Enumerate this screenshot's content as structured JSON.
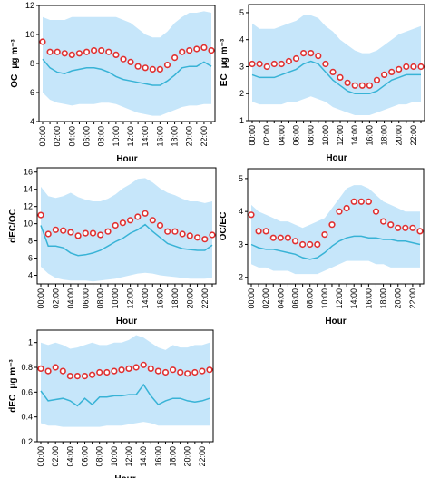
{
  "chart_data": [
    {
      "type": "line",
      "ylabel": "OC",
      "yunit": "μg m⁻³",
      "xlabel": "Hour",
      "ylim": [
        4,
        12
      ],
      "yticks": [
        4,
        6,
        8,
        10,
        12
      ],
      "x": [
        0,
        1,
        2,
        3,
        4,
        5,
        6,
        7,
        8,
        9,
        10,
        11,
        12,
        13,
        14,
        15,
        16,
        17,
        18,
        19,
        20,
        21,
        22,
        23
      ],
      "xticklabels": [
        "00:00",
        "02:00",
        "04:00",
        "06:00",
        "08:00",
        "10:00",
        "12:00",
        "14:00",
        "16:00",
        "18:00",
        "20:00",
        "22:00"
      ],
      "series": [
        {
          "role": "band_upper",
          "values": [
            11.2,
            11.0,
            11.0,
            11.0,
            11.2,
            11.2,
            11.2,
            11.2,
            11.2,
            11.2,
            11.2,
            11.0,
            10.8,
            10.4,
            10.0,
            9.8,
            9.8,
            10.2,
            10.8,
            11.2,
            11.5,
            11.5,
            11.6,
            11.5
          ]
        },
        {
          "role": "band_lower",
          "values": [
            6.0,
            5.5,
            5.3,
            5.2,
            5.1,
            5.2,
            5.2,
            5.2,
            5.3,
            5.3,
            5.2,
            5.0,
            4.8,
            4.6,
            4.5,
            4.4,
            4.4,
            4.6,
            4.8,
            5.0,
            5.1,
            5.1,
            5.2,
            5.2
          ]
        },
        {
          "role": "line",
          "values": [
            8.3,
            7.7,
            7.4,
            7.3,
            7.5,
            7.6,
            7.7,
            7.7,
            7.6,
            7.4,
            7.1,
            6.9,
            6.8,
            6.7,
            6.6,
            6.5,
            6.5,
            6.8,
            7.2,
            7.7,
            7.8,
            7.8,
            8.1,
            7.8
          ]
        },
        {
          "role": "markers",
          "values": [
            9.5,
            8.8,
            8.8,
            8.7,
            8.6,
            8.7,
            8.8,
            8.9,
            8.9,
            8.8,
            8.6,
            8.3,
            8.1,
            7.8,
            7.7,
            7.6,
            7.6,
            7.9,
            8.4,
            8.8,
            8.9,
            9.0,
            9.1,
            8.9
          ]
        }
      ]
    },
    {
      "type": "line",
      "ylabel": "EC",
      "yunit": "μg m⁻³",
      "xlabel": "Hour",
      "ylim": [
        1,
        5.3
      ],
      "yticks": [
        1,
        2,
        3,
        4,
        5
      ],
      "x": [
        0,
        1,
        2,
        3,
        4,
        5,
        6,
        7,
        8,
        9,
        10,
        11,
        12,
        13,
        14,
        15,
        16,
        17,
        18,
        19,
        20,
        21,
        22,
        23
      ],
      "xticklabels": [
        "00:00",
        "02:00",
        "04:00",
        "06:00",
        "08:00",
        "10:00",
        "12:00",
        "14:00",
        "16:00",
        "18:00",
        "20:00",
        "22:00"
      ],
      "series": [
        {
          "role": "band_upper",
          "values": [
            4.6,
            4.4,
            4.4,
            4.4,
            4.5,
            4.6,
            4.7,
            4.9,
            4.9,
            4.8,
            4.5,
            4.3,
            4.0,
            3.8,
            3.6,
            3.5,
            3.5,
            3.6,
            3.8,
            4.0,
            4.2,
            4.3,
            4.4,
            4.5
          ]
        },
        {
          "role": "band_lower",
          "values": [
            1.7,
            1.6,
            1.6,
            1.6,
            1.6,
            1.7,
            1.7,
            1.8,
            1.9,
            1.8,
            1.7,
            1.5,
            1.4,
            1.3,
            1.2,
            1.2,
            1.2,
            1.3,
            1.4,
            1.5,
            1.6,
            1.6,
            1.7,
            1.7
          ]
        },
        {
          "role": "line",
          "values": [
            2.7,
            2.6,
            2.6,
            2.6,
            2.7,
            2.8,
            2.9,
            3.1,
            3.2,
            3.1,
            2.8,
            2.5,
            2.3,
            2.1,
            2.0,
            2.0,
            2.0,
            2.1,
            2.3,
            2.5,
            2.6,
            2.7,
            2.7,
            2.7
          ]
        },
        {
          "role": "markers",
          "values": [
            3.1,
            3.1,
            3.0,
            3.1,
            3.1,
            3.2,
            3.3,
            3.5,
            3.5,
            3.4,
            3.1,
            2.8,
            2.6,
            2.4,
            2.3,
            2.3,
            2.3,
            2.5,
            2.7,
            2.8,
            2.9,
            3.0,
            3.0,
            3.0
          ]
        }
      ]
    },
    {
      "type": "line",
      "ylabel": "dEC/OC",
      "xlabel": "Hour",
      "ylim": [
        3,
        16.5
      ],
      "yticks": [
        4,
        6,
        8,
        10,
        12,
        14,
        16
      ],
      "x": [
        0,
        1,
        2,
        3,
        4,
        5,
        6,
        7,
        8,
        9,
        10,
        11,
        12,
        13,
        14,
        15,
        16,
        17,
        18,
        19,
        20,
        21,
        22,
        23
      ],
      "xticklabels": [
        "00:00",
        "02:00",
        "04:00",
        "06:00",
        "08:00",
        "10:00",
        "12:00",
        "14:00",
        "16:00",
        "18:00",
        "20:00",
        "22:00"
      ],
      "series": [
        {
          "role": "band_upper",
          "values": [
            14.3,
            13.2,
            13.0,
            13.2,
            13.6,
            13.1,
            12.8,
            12.6,
            12.6,
            12.9,
            13.4,
            14.1,
            14.6,
            15.2,
            15.3,
            14.8,
            14.1,
            13.6,
            13.3,
            12.9,
            12.6,
            12.6,
            12.4,
            12.6
          ]
        },
        {
          "role": "band_lower",
          "values": [
            5.0,
            4.2,
            3.7,
            3.5,
            3.4,
            3.4,
            3.4,
            3.3,
            3.4,
            3.5,
            3.6,
            3.8,
            4.0,
            4.2,
            4.3,
            4.2,
            4.0,
            3.9,
            3.8,
            3.7,
            3.6,
            3.6,
            3.6,
            3.7
          ]
        },
        {
          "role": "line",
          "values": [
            9.8,
            7.4,
            7.4,
            7.2,
            6.6,
            6.3,
            6.4,
            6.6,
            6.9,
            7.4,
            7.9,
            8.3,
            8.9,
            9.3,
            9.9,
            9.1,
            8.4,
            7.7,
            7.4,
            7.1,
            7.0,
            6.9,
            6.9,
            7.5
          ]
        },
        {
          "role": "markers",
          "values": [
            11.0,
            8.8,
            9.3,
            9.2,
            9.0,
            8.6,
            8.9,
            8.9,
            8.7,
            9.1,
            9.8,
            10.1,
            10.4,
            10.8,
            11.2,
            10.4,
            9.8,
            9.1,
            9.1,
            8.8,
            8.6,
            8.4,
            8.2,
            8.7
          ]
        }
      ]
    },
    {
      "type": "line",
      "ylabel": "OC/EC",
      "xlabel": "Hour",
      "ylim": [
        1.8,
        5.3
      ],
      "yticks": [
        2,
        3,
        4,
        5
      ],
      "x": [
        0,
        1,
        2,
        3,
        4,
        5,
        6,
        7,
        8,
        9,
        10,
        11,
        12,
        13,
        14,
        15,
        16,
        17,
        18,
        19,
        20,
        21,
        22,
        23
      ],
      "xticklabels": [
        "00:00",
        "02:00",
        "04:00",
        "06:00",
        "08:00",
        "10:00",
        "12:00",
        "14:00",
        "16:00",
        "18:00",
        "20:00",
        "22:00"
      ],
      "series": [
        {
          "role": "band_upper",
          "values": [
            4.2,
            4.0,
            3.9,
            3.8,
            3.7,
            3.7,
            3.6,
            3.5,
            3.6,
            3.7,
            3.8,
            4.1,
            4.4,
            4.7,
            4.8,
            4.8,
            4.7,
            4.5,
            4.3,
            4.2,
            4.1,
            4.0,
            4.0,
            4.0
          ]
        },
        {
          "role": "band_lower",
          "values": [
            2.4,
            2.3,
            2.3,
            2.2,
            2.2,
            2.2,
            2.1,
            2.1,
            2.1,
            2.1,
            2.2,
            2.3,
            2.4,
            2.5,
            2.5,
            2.5,
            2.5,
            2.4,
            2.4,
            2.3,
            2.3,
            2.3,
            2.3,
            2.3
          ]
        },
        {
          "role": "line",
          "values": [
            3.0,
            2.9,
            2.85,
            2.85,
            2.8,
            2.75,
            2.7,
            2.6,
            2.55,
            2.6,
            2.75,
            2.95,
            3.1,
            3.2,
            3.25,
            3.25,
            3.2,
            3.2,
            3.15,
            3.15,
            3.1,
            3.1,
            3.05,
            3.0
          ]
        },
        {
          "role": "markers",
          "values": [
            3.9,
            3.4,
            3.4,
            3.2,
            3.2,
            3.2,
            3.1,
            3.0,
            3.0,
            3.0,
            3.3,
            3.6,
            4.0,
            4.1,
            4.3,
            4.3,
            4.3,
            4.0,
            3.7,
            3.6,
            3.5,
            3.5,
            3.5,
            3.4
          ]
        }
      ]
    },
    {
      "type": "line",
      "ylabel": "dEC",
      "yunit": "μg m⁻³",
      "xlabel": "Hour",
      "ylim": [
        0.2,
        1.1
      ],
      "yticks": [
        0.2,
        0.4,
        0.6,
        0.8,
        1.0
      ],
      "x": [
        0,
        1,
        2,
        3,
        4,
        5,
        6,
        7,
        8,
        9,
        10,
        11,
        12,
        13,
        14,
        15,
        16,
        17,
        18,
        19,
        20,
        21,
        22,
        23
      ],
      "xticklabels": [
        "00:00",
        "02:00",
        "04:00",
        "06:00",
        "08:00",
        "10:00",
        "12:00",
        "14:00",
        "16:00",
        "18:00",
        "20:00",
        "22:00"
      ],
      "series": [
        {
          "role": "band_upper",
          "values": [
            1.0,
            0.98,
            1.0,
            0.98,
            0.95,
            0.96,
            0.98,
            1.0,
            0.98,
            0.98,
            1.0,
            1.0,
            1.02,
            1.06,
            1.04,
            1.0,
            0.96,
            0.94,
            0.98,
            0.96,
            0.96,
            0.98,
            0.98,
            1.0
          ]
        },
        {
          "role": "band_lower",
          "values": [
            0.35,
            0.33,
            0.33,
            0.32,
            0.32,
            0.32,
            0.32,
            0.32,
            0.32,
            0.33,
            0.33,
            0.33,
            0.34,
            0.35,
            0.36,
            0.35,
            0.33,
            0.33,
            0.33,
            0.33,
            0.33,
            0.33,
            0.33,
            0.33
          ]
        },
        {
          "role": "line",
          "values": [
            0.61,
            0.53,
            0.54,
            0.55,
            0.53,
            0.49,
            0.55,
            0.5,
            0.56,
            0.56,
            0.57,
            0.57,
            0.58,
            0.58,
            0.66,
            0.57,
            0.5,
            0.53,
            0.55,
            0.55,
            0.53,
            0.52,
            0.53,
            0.55
          ]
        },
        {
          "role": "markers",
          "values": [
            0.79,
            0.77,
            0.8,
            0.77,
            0.73,
            0.73,
            0.73,
            0.74,
            0.76,
            0.76,
            0.77,
            0.78,
            0.79,
            0.8,
            0.82,
            0.79,
            0.77,
            0.76,
            0.78,
            0.76,
            0.75,
            0.76,
            0.77,
            0.78
          ]
        }
      ]
    }
  ],
  "colors": {
    "band": "#c6e6fa",
    "line": "#38b3d6",
    "marker_edge": "#e03030",
    "marker_fill": "#ffffff",
    "axis": "#000000"
  }
}
